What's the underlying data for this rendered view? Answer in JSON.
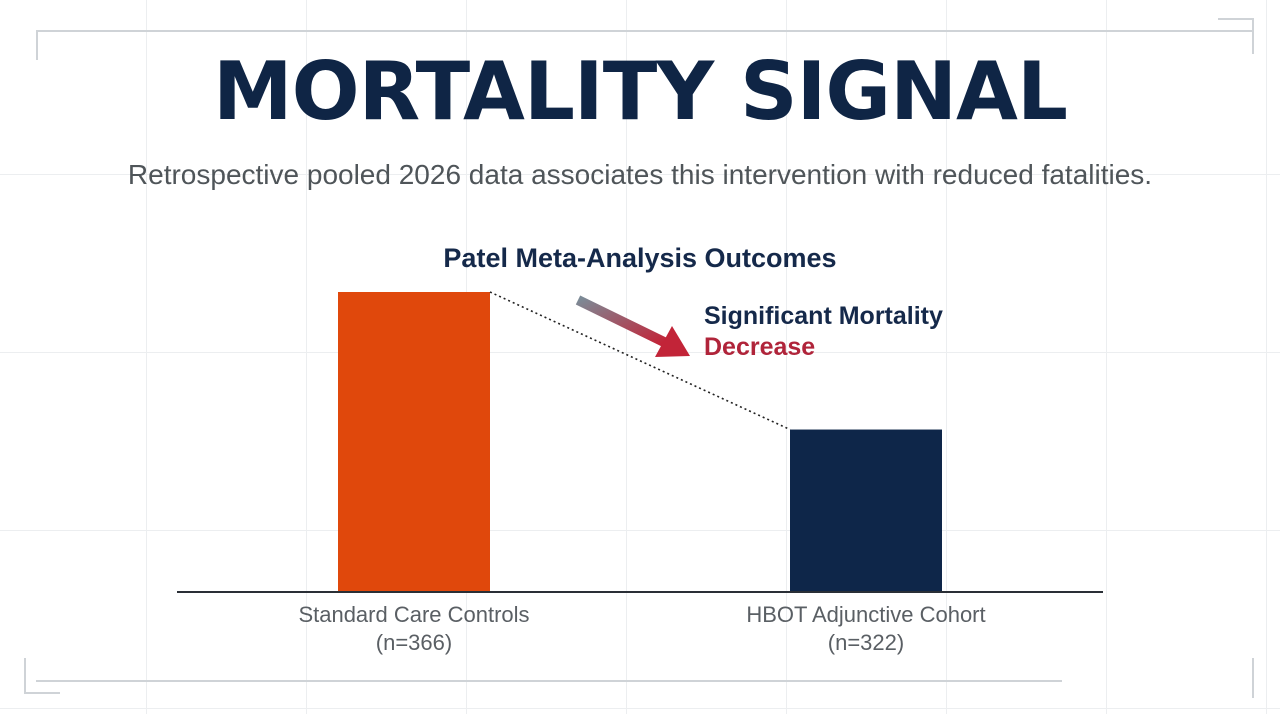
{
  "page": {
    "title": "MORTALITY SIGNAL",
    "subtitle": "Retrospective pooled 2026 data associates this intervention with reduced fatalities."
  },
  "colors": {
    "title": "#0f2545",
    "subtitle": "#4f5559",
    "control_bar": "#e0480c",
    "cohort_bar": "#0e2649",
    "annotation_dark": "#15294a",
    "annotation_red": "#b0243a",
    "arrow_start": "#7c8a96",
    "arrow_end": "#c22438"
  },
  "chart_data": {
    "type": "bar",
    "title": "Patel Meta-Analysis Outcomes",
    "categories": [
      "Standard Care Controls",
      "HBOT Adjunctive Cohort"
    ],
    "category_notes": [
      "(n=366)",
      "(n=322)"
    ],
    "values": [
      100,
      54
    ],
    "value_unit": "relative mortality (%), read from bar heights; no y-axis printed",
    "ylim": [
      0,
      100
    ],
    "xlabel": "",
    "ylabel": "",
    "grid": false,
    "legend": false,
    "bar_colors": [
      "#e0480c",
      "#0e2649"
    ],
    "trend_line": "dotted",
    "annotation": {
      "line1": "Significant Mortality",
      "line2": "Decrease"
    }
  }
}
